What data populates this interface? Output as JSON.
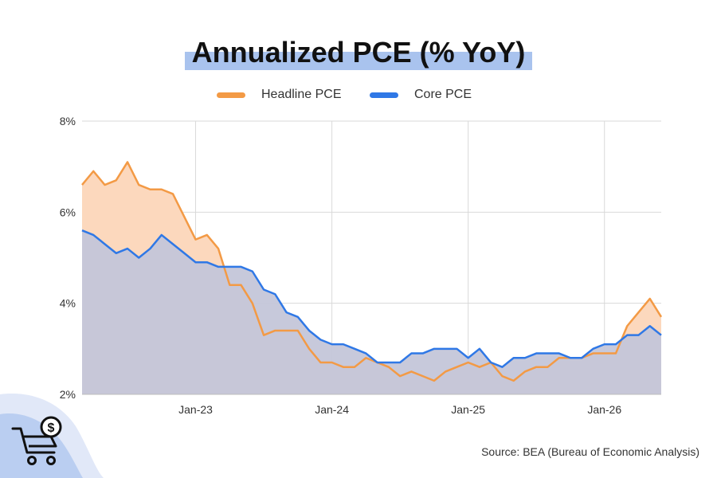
{
  "chart_data": {
    "type": "area",
    "title": "Annualized PCE (% YoY)",
    "xlabel": "",
    "ylabel": "",
    "x": [
      "2022-03",
      "2022-04",
      "2022-05",
      "2022-06",
      "2022-07",
      "2022-08",
      "2022-09",
      "2022-10",
      "2022-11",
      "2022-12",
      "2023-01",
      "2023-02",
      "2023-03",
      "2023-04",
      "2023-05",
      "2023-06",
      "2023-07",
      "2023-08",
      "2023-09",
      "2023-10",
      "2023-11",
      "2023-12",
      "2024-01",
      "2024-02",
      "2024-03",
      "2024-04",
      "2024-05",
      "2024-06",
      "2024-07",
      "2024-08",
      "2024-09",
      "2024-10",
      "2024-11",
      "2024-12",
      "2025-01",
      "2025-02",
      "2025-03",
      "2025-04",
      "2025-05",
      "2025-06",
      "2025-07",
      "2025-08",
      "2025-09",
      "2025-10",
      "2025-11",
      "2025-12",
      "2026-01",
      "2026-02",
      "2026-03",
      "2026-04",
      "2026-05",
      "2026-06"
    ],
    "x_tick_labels": [
      "Jan-23",
      "Jan-24",
      "Jan-25",
      "Jan-26"
    ],
    "x_tick_positions": [
      "2023-01",
      "2024-01",
      "2025-01",
      "2026-01"
    ],
    "y_ticks": [
      2,
      4,
      6,
      8
    ],
    "y_tick_labels": [
      "2%",
      "4%",
      "6%",
      "8%"
    ],
    "ylim": [
      2,
      8
    ],
    "grid": true,
    "legend_position": "top-center",
    "series": [
      {
        "name": "Headline PCE",
        "color": "#f39a45",
        "fill": "#fcd8bd",
        "values": [
          6.6,
          6.9,
          6.6,
          6.7,
          7.1,
          6.6,
          6.5,
          6.5,
          6.4,
          5.9,
          5.4,
          5.5,
          5.2,
          4.4,
          4.4,
          4.0,
          3.3,
          3.4,
          3.4,
          3.4,
          3.0,
          2.7,
          2.7,
          2.6,
          2.6,
          2.8,
          2.7,
          2.6,
          2.4,
          2.5,
          2.4,
          2.3,
          2.5,
          2.6,
          2.7,
          2.6,
          2.7,
          2.4,
          2.3,
          2.5,
          2.6,
          2.6,
          2.8,
          2.8,
          2.8,
          2.9,
          2.9,
          2.9,
          3.5,
          3.8,
          4.1,
          3.7
        ]
      },
      {
        "name": "Core PCE",
        "color": "#2f78e6",
        "fill": "#c4c6d9",
        "values": [
          5.6,
          5.5,
          5.3,
          5.1,
          5.2,
          5.0,
          5.2,
          5.5,
          5.3,
          5.1,
          4.9,
          4.9,
          4.8,
          4.8,
          4.8,
          4.7,
          4.3,
          4.2,
          3.8,
          3.7,
          3.4,
          3.2,
          3.1,
          3.1,
          3.0,
          2.9,
          2.7,
          2.7,
          2.7,
          2.9,
          2.9,
          3.0,
          3.0,
          3.0,
          2.8,
          3.0,
          2.7,
          2.6,
          2.8,
          2.8,
          2.9,
          2.9,
          2.9,
          2.8,
          2.8,
          3.0,
          3.1,
          3.1,
          3.3,
          3.3,
          3.5,
          3.3
        ]
      }
    ]
  },
  "source": "Source: BEA (Bureau of Economic Analysis)",
  "colors": {
    "title_highlight": "#a9c3ee",
    "grid": "#d9d9d9",
    "deco_wave": "#c8d6f2"
  },
  "icons": {
    "corner": "shopping-cart-dollar-icon"
  }
}
